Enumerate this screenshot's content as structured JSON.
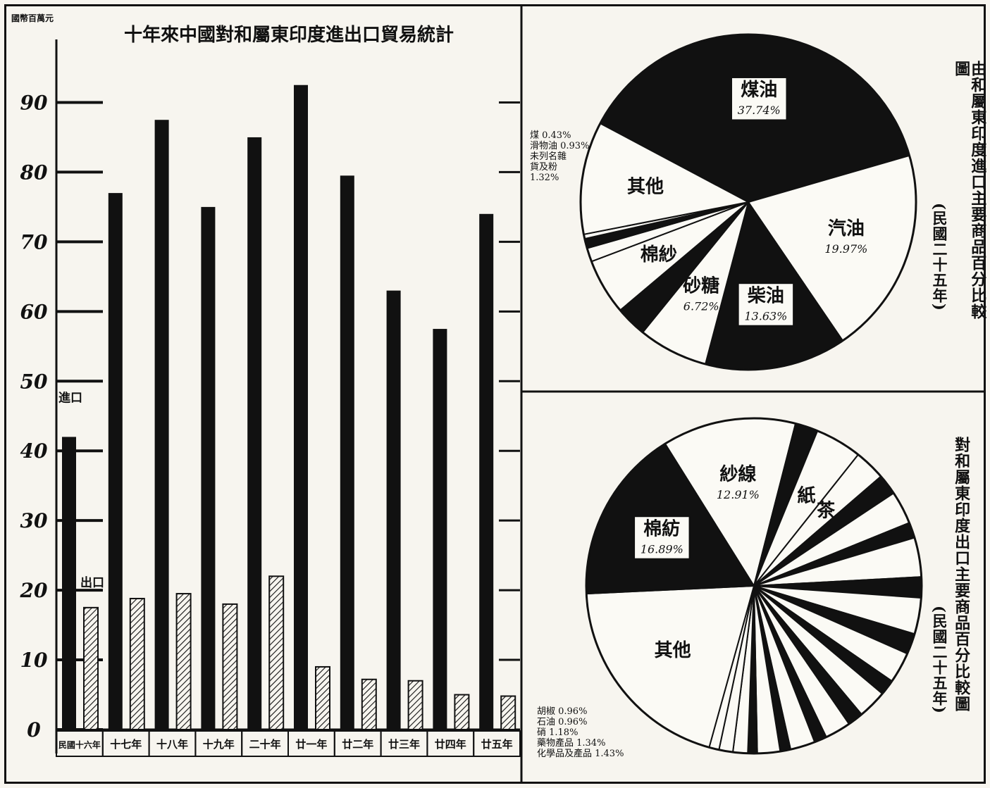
{
  "chart_data": [
    {
      "type": "bar",
      "title": "十年來中國對和屬東印度進出口貿易統計",
      "unit_label": "國幣百萬元",
      "categories": [
        "民國十六年",
        "十七年",
        "十八年",
        "十九年",
        "二十年",
        "廿一年",
        "廿二年",
        "廿三年",
        "廿四年",
        "廿五年"
      ],
      "series": [
        {
          "name": "進口",
          "values": [
            42,
            77,
            87.5,
            75,
            85,
            92.5,
            79.5,
            63,
            57.5,
            74
          ],
          "style": "solid",
          "color": "#111111"
        },
        {
          "name": "出口",
          "values": [
            17.5,
            18.8,
            19.5,
            18,
            22,
            9,
            7.2,
            7,
            5,
            4.8
          ],
          "style": "hatched",
          "color": "#111111"
        }
      ],
      "y_ticks": [
        0,
        10,
        20,
        30,
        40,
        50,
        60,
        70,
        80,
        90
      ],
      "ylim": [
        0,
        95
      ]
    },
    {
      "type": "pie",
      "title": "由和屬東印度進口主要商品百分比較圖",
      "subtitle": "(民國二十五年)",
      "slices": [
        {
          "label": "煤油",
          "value": 37.74,
          "value_label": "37.74%",
          "fill": "dark"
        },
        {
          "label": "汽油",
          "value": 19.97,
          "value_label": "19.97%",
          "fill": "light"
        },
        {
          "label": "柴油",
          "value": 13.63,
          "value_label": "13.63%",
          "fill": "dark"
        },
        {
          "label": "砂糖",
          "value": 6.72,
          "value_label": "6.72%",
          "fill": "light"
        },
        {
          "label": "",
          "value": 3.0,
          "value_label": "",
          "fill": "dark"
        },
        {
          "label": "棉紗",
          "value": 5.4,
          "value_label": "",
          "fill": "light"
        },
        {
          "label": "",
          "value": 1.32,
          "value_label": "",
          "fill": "light"
        },
        {
          "label": "",
          "value": 0.93,
          "value_label": "",
          "fill": "dark"
        },
        {
          "label": "",
          "value": 0.43,
          "value_label": "",
          "fill": "light"
        },
        {
          "label": "其他",
          "value": 10.86,
          "value_label": "",
          "fill": "light"
        }
      ],
      "callout": [
        "煤 0.43%",
        "滑物油 0.93%",
        "未列名雜",
        "貨及粉",
        "1.32%"
      ]
    },
    {
      "type": "pie",
      "title": "對和屬東印度出口主要商品百分比較圖",
      "subtitle": "(民國二十五年)",
      "slices": [
        {
          "label": "紗線",
          "value": 12.91,
          "value_label": "12.91%",
          "fill": "light"
        },
        {
          "label": "",
          "value": 2.2,
          "value_label": "",
          "fill": "dark"
        },
        {
          "label": "紙",
          "value": 4.5,
          "value_label": "",
          "fill": "light"
        },
        {
          "label": "茶",
          "value": 3.0,
          "value_label": "",
          "fill": "light"
        },
        {
          "label": "",
          "value": 2.0,
          "value_label": "",
          "fill": "dark"
        },
        {
          "label": "",
          "value": 3.2,
          "value_label": "",
          "fill": "light"
        },
        {
          "label": "",
          "value": 1.5,
          "value_label": "",
          "fill": "dark"
        },
        {
          "label": "",
          "value": 3.8,
          "value_label": "",
          "fill": "light"
        },
        {
          "label": "",
          "value": 2.0,
          "value_label": "",
          "fill": "dark"
        },
        {
          "label": "",
          "value": 3.5,
          "value_label": "",
          "fill": "light"
        },
        {
          "label": "",
          "value": 2.0,
          "value_label": "",
          "fill": "dark"
        },
        {
          "label": "",
          "value": 3.0,
          "value_label": "",
          "fill": "light"
        },
        {
          "label": "",
          "value": 1.5,
          "value_label": "",
          "fill": "dark"
        },
        {
          "label": "",
          "value": 2.8,
          "value_label": "",
          "fill": "light"
        },
        {
          "label": "",
          "value": 1.5,
          "value_label": "",
          "fill": "dark"
        },
        {
          "label": "",
          "value": 2.5,
          "value_label": "",
          "fill": "light"
        },
        {
          "label": "",
          "value": 1.2,
          "value_label": "",
          "fill": "dark"
        },
        {
          "label": "",
          "value": 2.4,
          "value_label": "",
          "fill": "light"
        },
        {
          "label": "",
          "value": 1.0,
          "value_label": "",
          "fill": "dark"
        },
        {
          "label": "",
          "value": 2.2,
          "value_label": "",
          "fill": "light"
        },
        {
          "label": "",
          "value": 0.9,
          "value_label": "",
          "fill": "dark"
        },
        {
          "label": "",
          "value": 1.43,
          "value_label": "",
          "fill": "light"
        },
        {
          "label": "",
          "value": 1.34,
          "value_label": "",
          "fill": "light"
        },
        {
          "label": "",
          "value": 0.96,
          "value_label": "",
          "fill": "light"
        },
        {
          "label": "其他",
          "value": 20.0,
          "value_label": "",
          "fill": "light"
        },
        {
          "label": "棉紡",
          "value": 16.89,
          "value_label": "16.89%",
          "fill": "dark"
        }
      ],
      "callout": [
        "胡椒 0.96%",
        "石油 0.96%",
        "硝 1.18%",
        "藥物產品 1.34%",
        "化學品及產品 1.43%"
      ]
    }
  ]
}
